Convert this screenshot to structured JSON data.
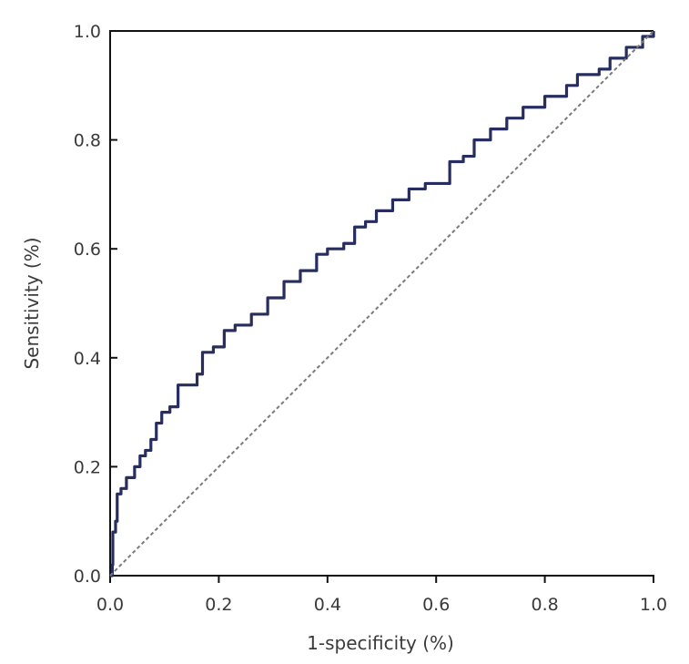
{
  "chart_data": {
    "type": "line",
    "xlabel": "1-specificity (%)",
    "ylabel": "Sensitivity (%)",
    "xlim": [
      0,
      1
    ],
    "ylim": [
      0,
      1
    ],
    "x_ticks": [
      "0.0",
      "0.2",
      "0.4",
      "0.6",
      "0.8",
      "1.0"
    ],
    "y_ticks": [
      "0.0",
      "0.2",
      "0.4",
      "0.6",
      "0.8",
      "1.0"
    ],
    "grid": false,
    "legend": "none",
    "series": [
      {
        "color": "#272d5e",
        "style": "solid",
        "points": [
          [
            0.0,
            0.0
          ],
          [
            0.004,
            0.02
          ],
          [
            0.005,
            0.08
          ],
          [
            0.01,
            0.1
          ],
          [
            0.013,
            0.15
          ],
          [
            0.02,
            0.16
          ],
          [
            0.03,
            0.18
          ],
          [
            0.045,
            0.2
          ],
          [
            0.055,
            0.22
          ],
          [
            0.065,
            0.23
          ],
          [
            0.075,
            0.25
          ],
          [
            0.085,
            0.28
          ],
          [
            0.095,
            0.3
          ],
          [
            0.11,
            0.31
          ],
          [
            0.125,
            0.35
          ],
          [
            0.14,
            0.35
          ],
          [
            0.16,
            0.37
          ],
          [
            0.17,
            0.41
          ],
          [
            0.19,
            0.42
          ],
          [
            0.21,
            0.45
          ],
          [
            0.23,
            0.46
          ],
          [
            0.26,
            0.48
          ],
          [
            0.29,
            0.51
          ],
          [
            0.32,
            0.54
          ],
          [
            0.35,
            0.56
          ],
          [
            0.38,
            0.59
          ],
          [
            0.4,
            0.6
          ],
          [
            0.43,
            0.61
          ],
          [
            0.45,
            0.64
          ],
          [
            0.47,
            0.65
          ],
          [
            0.49,
            0.67
          ],
          [
            0.52,
            0.69
          ],
          [
            0.55,
            0.71
          ],
          [
            0.58,
            0.72
          ],
          [
            0.62,
            0.72
          ],
          [
            0.625,
            0.76
          ],
          [
            0.65,
            0.77
          ],
          [
            0.67,
            0.8
          ],
          [
            0.7,
            0.82
          ],
          [
            0.73,
            0.84
          ],
          [
            0.76,
            0.86
          ],
          [
            0.8,
            0.88
          ],
          [
            0.84,
            0.9
          ],
          [
            0.86,
            0.92
          ],
          [
            0.9,
            0.93
          ],
          [
            0.92,
            0.95
          ],
          [
            0.95,
            0.97
          ],
          [
            0.98,
            0.99
          ],
          [
            1.0,
            1.0
          ]
        ]
      },
      {
        "color": "#7a7a7a",
        "style": "dashed",
        "points": [
          [
            0,
            0
          ],
          [
            1,
            1
          ]
        ]
      }
    ]
  }
}
